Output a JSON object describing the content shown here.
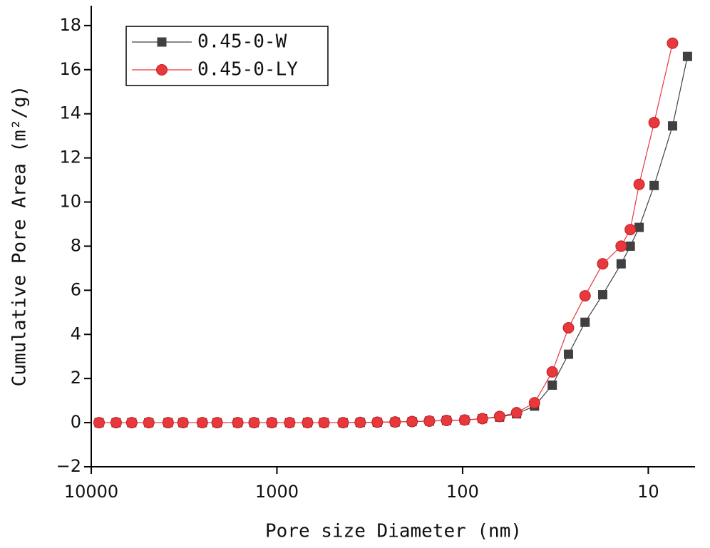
{
  "chart_data": {
    "type": "line",
    "x_label": "Pore size Diameter (nm)",
    "y_label": "Cumulative Pore Area (m²/g)",
    "x_log": true,
    "x": [
      9074,
      7345,
      6050,
      4898,
      3855,
      3206,
      2524,
      2099,
      1625,
      1327,
      1065,
      854,
      684,
      558,
      440,
      356,
      288,
      231,
      187,
      151,
      122,
      97.5,
      78.2,
      63.2,
      51.2,
      41.0,
      32.9,
      26.9,
      21.9,
      17.6,
      14.0,
      12.5,
      11.2,
      9.3,
      7.4,
      6.15
    ],
    "series": [
      {
        "name": "0.45-0-W",
        "color": "#404040",
        "marker": "square",
        "values": [
          0,
          0,
          0,
          0,
          0,
          0,
          0,
          0,
          0,
          0,
          0,
          0,
          0,
          0,
          0,
          0.01,
          0.02,
          0.03,
          0.05,
          0.07,
          0.1,
          0.12,
          0.18,
          0.25,
          0.4,
          0.75,
          1.7,
          3.1,
          4.55,
          5.8,
          7.2,
          8.0,
          8.85,
          10.75,
          13.45,
          16.6
        ]
      },
      {
        "name": "0.45-0-LY",
        "color": "#e8383d",
        "marker": "circle",
        "values": [
          0,
          0,
          0,
          0,
          0,
          0,
          0,
          0,
          0,
          0,
          0,
          0,
          0,
          0,
          0,
          0.01,
          0.02,
          0.03,
          0.05,
          0.07,
          0.1,
          0.12,
          0.18,
          0.28,
          0.45,
          0.9,
          2.3,
          4.3,
          5.75,
          7.2,
          8.0,
          8.75,
          10.8,
          13.6,
          17.2,
          null
        ]
      }
    ],
    "xlim": [
      10000,
      5.6
    ],
    "xticks": [
      10000,
      1000,
      100,
      10
    ],
    "ylim": [
      -2,
      18.9
    ],
    "yticks": [
      {
        "value": -2,
        "label": "−2"
      },
      0,
      2,
      4,
      6,
      8,
      10,
      12,
      14,
      16,
      18
    ],
    "legend": "top-left"
  }
}
